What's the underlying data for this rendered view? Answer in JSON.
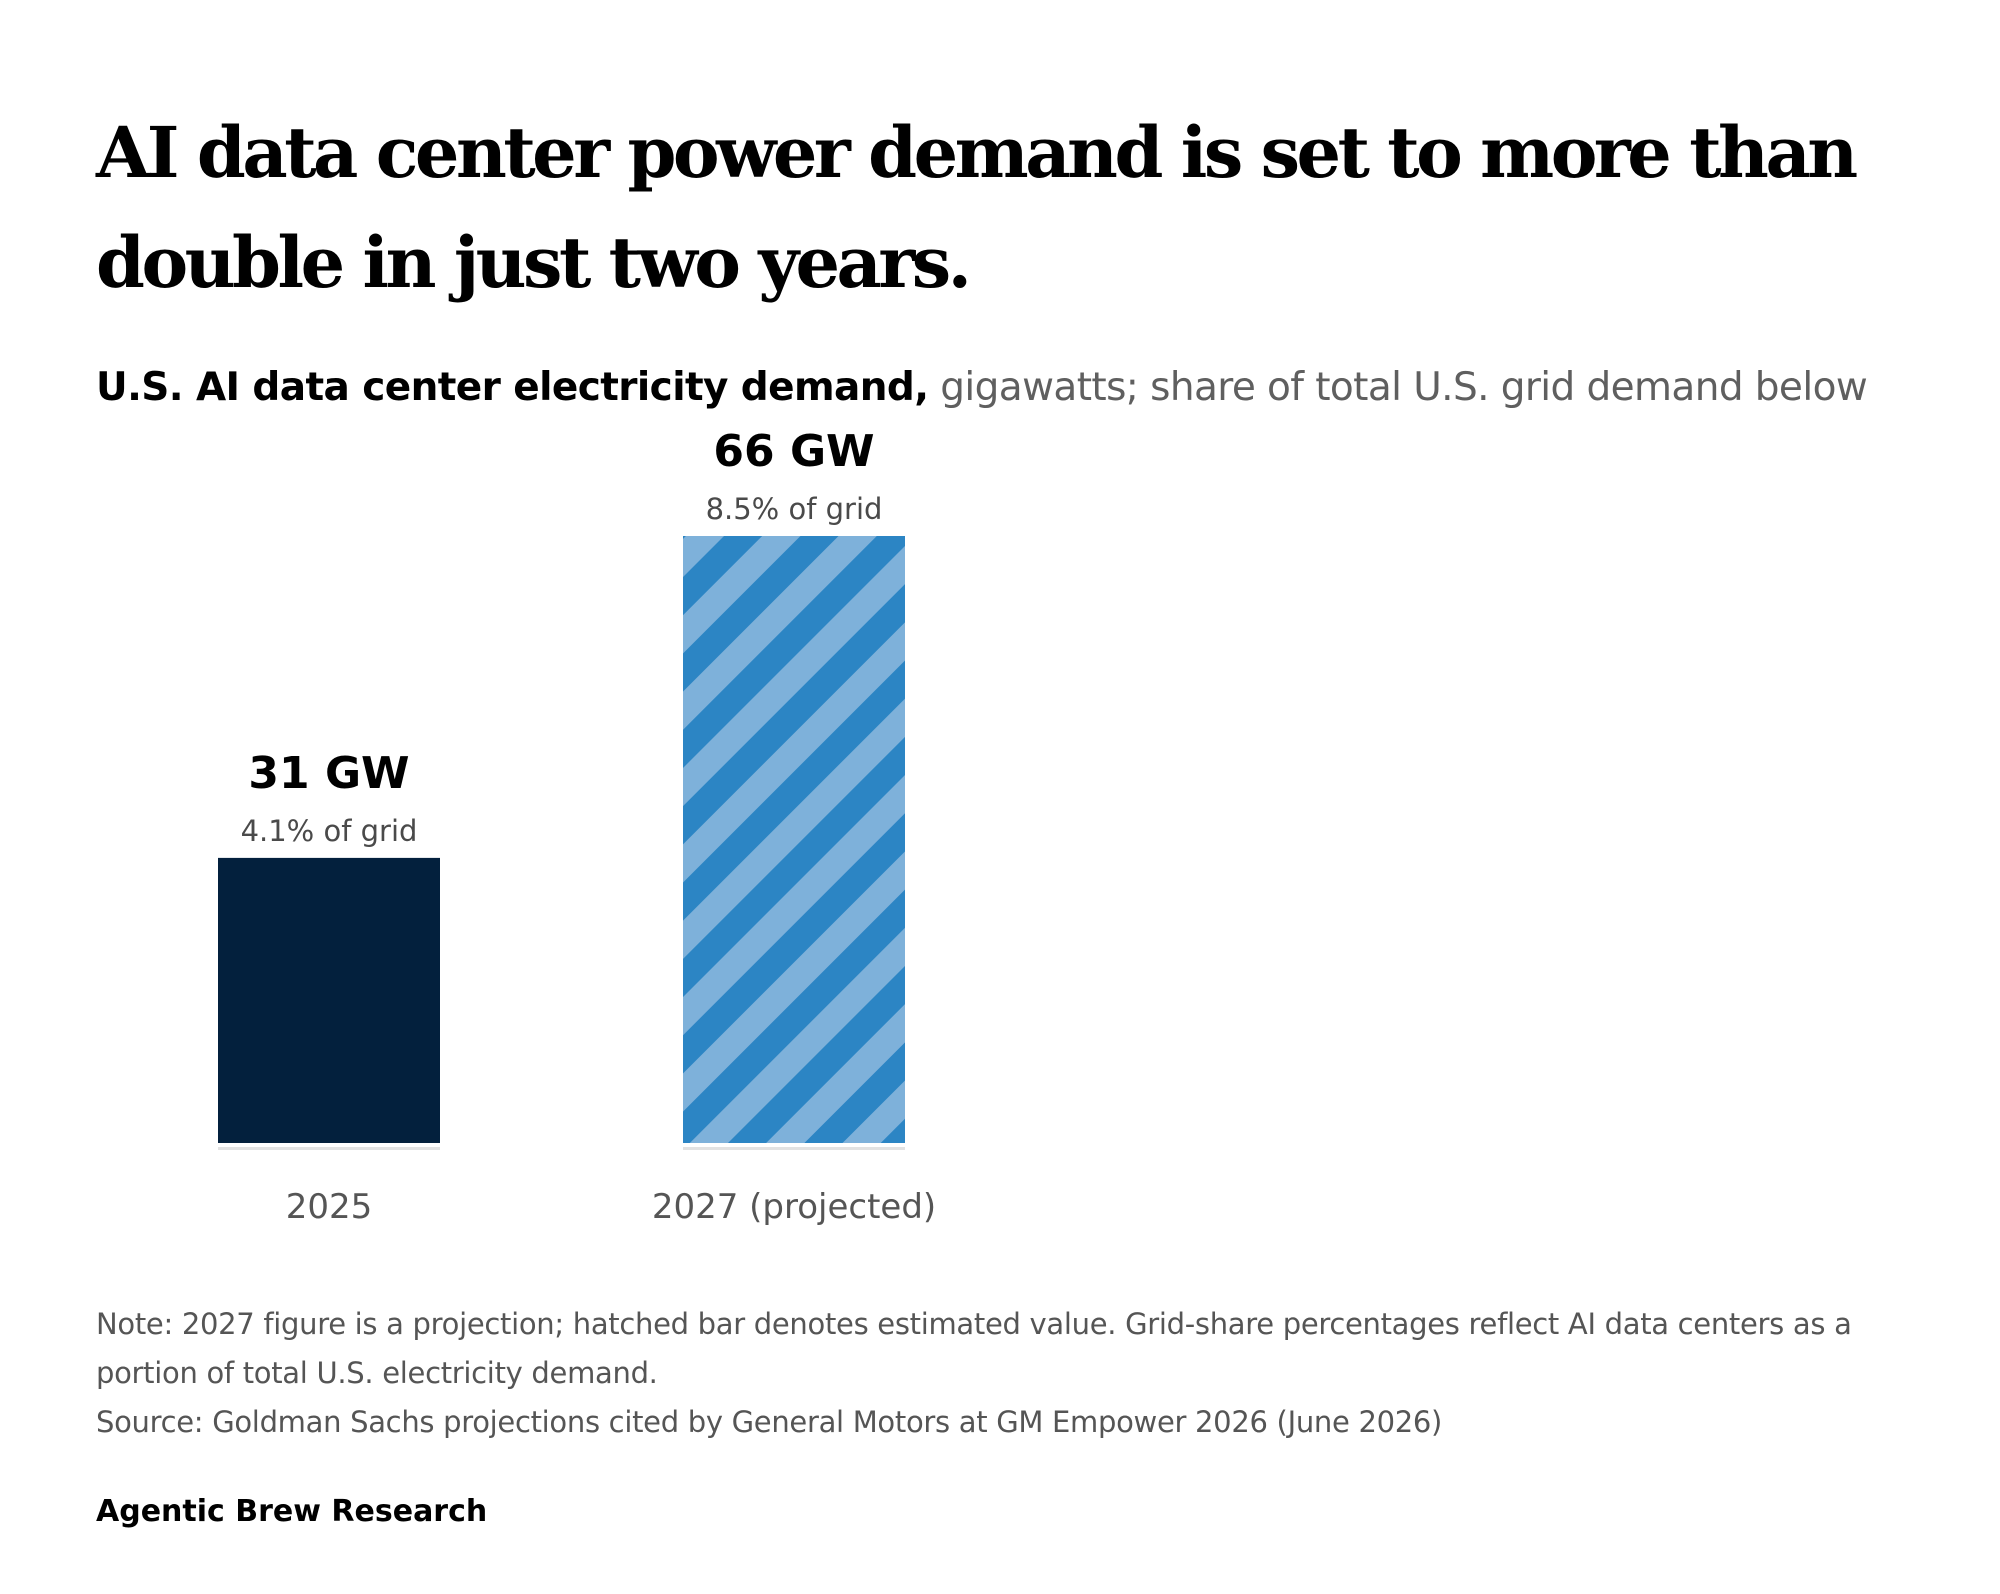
{
  "header": {
    "headline": "AI data center power demand is set to more than double in just two years.",
    "subtitle_bold": "U.S. AI data center electricity demand,",
    "subtitle_light": "gigawatts; share of total U.S. grid demand below"
  },
  "chart_data": {
    "type": "bar",
    "categories": [
      "2025",
      "2027 (projected)"
    ],
    "values": [
      31,
      66
    ],
    "value_labels": [
      "31 GW",
      "66 GW"
    ],
    "share_labels": [
      "4.1% of grid",
      "8.5% of grid"
    ],
    "grid_share_percent": [
      4.1,
      8.5
    ],
    "projected": [
      false,
      true
    ],
    "ylim": [
      0,
      66
    ],
    "grid": false,
    "legend": "none",
    "colors": {
      "actual": "#03203d",
      "projected_dark": "#2c85c4",
      "projected_light": "#7eb1da",
      "baseline": "#e2e2e2",
      "value_label": "#000000",
      "share_label": "#4a4a4a",
      "category_label": "#555555"
    }
  },
  "footer": {
    "note": "Note: 2027 figure is a projection; hatched bar denotes estimated value. Grid-share percentages reflect AI data centers as a portion of total U.S. electricity demand.",
    "source": "Source: Goldman Sachs projections cited by General Motors at GM Empower 2026 (June 2026)",
    "brand": "Agentic Brew Research"
  }
}
